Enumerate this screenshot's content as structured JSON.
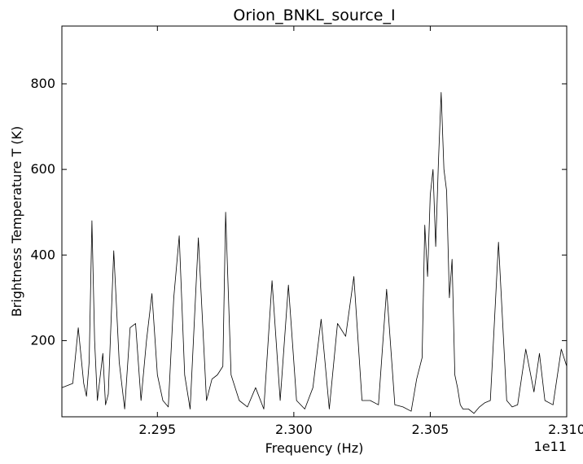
{
  "chart_data": {
    "type": "line",
    "title": "Orion_BNKL_source_I",
    "xlabel": "Frequency (Hz)",
    "ylabel": "Brightness Temperature T (K)",
    "x_offset_label": "1e11",
    "xlim": [
      2.2915,
      2.31
    ],
    "ylim": [
      22,
      935
    ],
    "x_ticks": [
      2.295,
      2.3,
      2.305,
      2.31
    ],
    "x_tick_labels": [
      "2.295",
      "2.300",
      "2.305",
      "2.310"
    ],
    "y_ticks": [
      200,
      400,
      600,
      800
    ],
    "y_tick_labels": [
      "200",
      "400",
      "600",
      "800"
    ],
    "grid": false,
    "line_color": "#000000",
    "series": [
      {
        "x": [
          2.2915,
          2.2917,
          2.2919,
          2.2921,
          2.2923,
          2.2924,
          2.2925,
          2.2926,
          2.2927,
          2.2928,
          2.293,
          2.2931,
          2.2932,
          2.2934,
          2.2936,
          2.2938,
          2.294,
          2.2942,
          2.2944,
          2.2946,
          2.2948,
          2.295,
          2.2952,
          2.2954,
          2.2956,
          2.2958,
          2.296,
          2.2962,
          2.2965,
          2.2968,
          2.297,
          2.2972,
          2.2974,
          2.2975,
          2.2977,
          2.298,
          2.2983,
          2.2986,
          2.2989,
          2.2992,
          2.2995,
          2.2998,
          2.3001,
          2.3004,
          2.3007,
          2.301,
          2.3013,
          2.3016,
          2.3019,
          2.3022,
          2.3025,
          2.3028,
          2.3031,
          2.3034,
          2.3037,
          2.304,
          2.3043,
          2.3045,
          2.3047,
          2.3048,
          2.3049,
          2.305,
          2.3051,
          2.3052,
          2.3053,
          2.3054,
          2.3055,
          2.3056,
          2.3057,
          2.3058,
          2.3059,
          2.306,
          2.3061,
          2.3062,
          2.3064,
          2.3066,
          2.3068,
          2.307,
          2.3072,
          2.3073,
          2.3075,
          2.3078,
          2.308,
          2.3082,
          2.3085,
          2.3088,
          2.309,
          2.3092,
          2.3095,
          2.3098,
          2.31
        ],
        "y": [
          90,
          95,
          100,
          230,
          100,
          70,
          150,
          480,
          200,
          60,
          170,
          50,
          75,
          410,
          150,
          40,
          230,
          240,
          60,
          200,
          310,
          120,
          60,
          45,
          300,
          445,
          120,
          40,
          440,
          60,
          110,
          120,
          140,
          500,
          120,
          60,
          45,
          90,
          40,
          340,
          60,
          330,
          60,
          40,
          90,
          250,
          40,
          240,
          210,
          350,
          60,
          60,
          50,
          320,
          50,
          45,
          35,
          110,
          160,
          470,
          350,
          540,
          600,
          420,
          620,
          780,
          600,
          550,
          300,
          390,
          120,
          90,
          50,
          40,
          40,
          30,
          45,
          55,
          60,
          180,
          430,
          60,
          45,
          50,
          180,
          80,
          170,
          60,
          50,
          180,
          140
        ]
      }
    ]
  }
}
